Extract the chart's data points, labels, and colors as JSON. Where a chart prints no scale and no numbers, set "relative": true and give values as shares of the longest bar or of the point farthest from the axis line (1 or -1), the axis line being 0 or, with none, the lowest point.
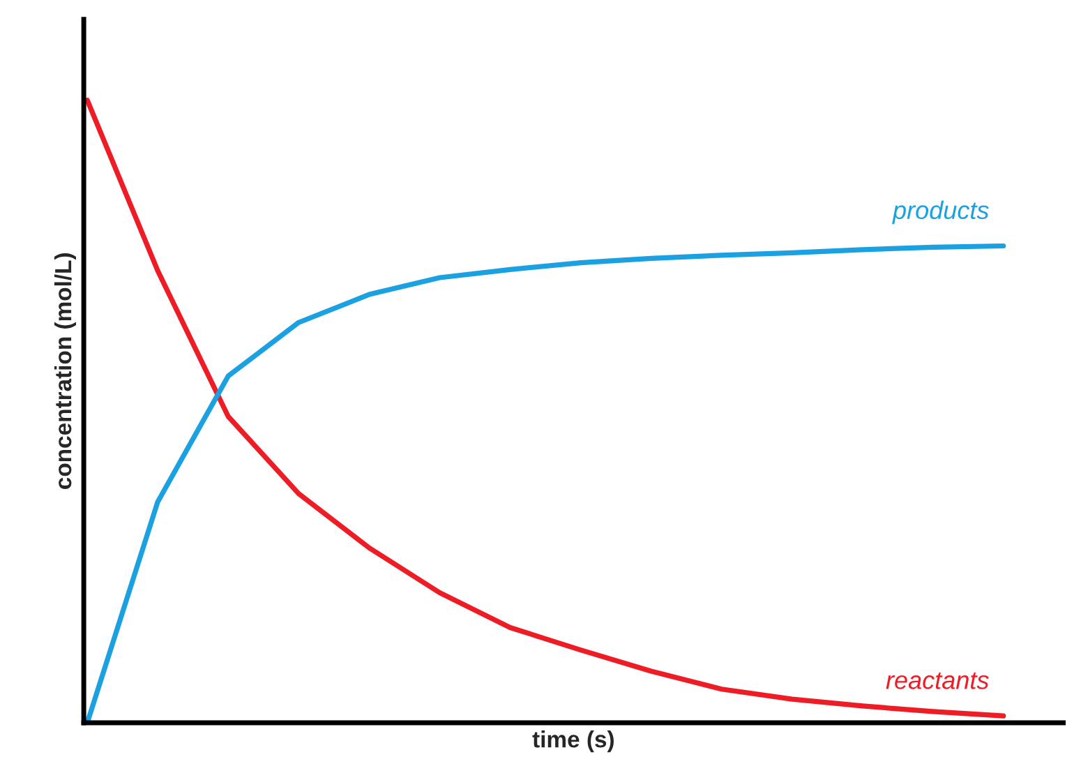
{
  "chart_data": {
    "type": "line",
    "relative": true,
    "xlabel": "time (s)",
    "ylabel": "concentration (mol/L)",
    "categories": [
      null,
      null,
      null,
      null,
      null,
      null,
      null,
      null,
      null,
      null,
      null,
      null,
      null,
      null
    ],
    "series": [
      {
        "name": "reactants",
        "color": "#ee1c25",
        "values": [
          1,
          0.726,
          0.492,
          0.368,
          0.281,
          0.209,
          0.153,
          0.117,
          0.083,
          0.054,
          0.038,
          0.027,
          0.018,
          0.011
        ]
      },
      {
        "name": "products",
        "color": "#1ba1e2",
        "values": [
          0,
          0.355,
          0.557,
          0.643,
          0.688,
          0.715,
          0.728,
          0.739,
          0.746,
          0.751,
          0.755,
          0.76,
          0.764,
          0.766
        ]
      }
    ],
    "legend": false,
    "marker": "none",
    "line_style": "solid"
  }
}
